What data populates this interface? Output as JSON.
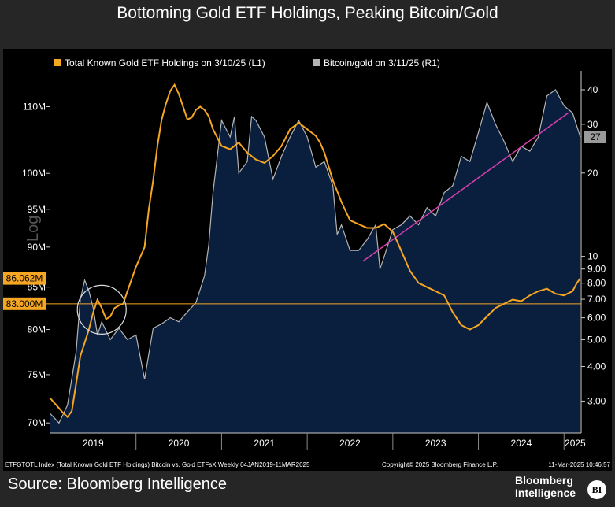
{
  "title": "Bottoming Gold ETF Holdings, Peaking Bitcoin/Gold",
  "source": "Source: Bloomberg Intelligence",
  "brand": {
    "line1": "Bloomberg",
    "line2": "Intelligence",
    "badge": "BI"
  },
  "footnote_left": "ETFGTOTL Index (Total Known Gold ETF Holdings) Bitcoin vs. Gold ETFsX  Weekly 04JAN2019-11MAR2025",
  "footnote_mid": "Copyright© 2025 Bloomberg Finance L.P.",
  "footnote_right": "11-Mar-2025 10:46:57",
  "log_label": "Log",
  "colors": {
    "gold": "#f5a623",
    "bitcoin_gold": "#b4b4b4",
    "area": "#0a1f3d",
    "trend": "#d93fb0",
    "bg": "#000000"
  },
  "chart_data": {
    "type": "line",
    "x_labels": [
      "2019",
      "2020",
      "2021",
      "2022",
      "2023",
      "2024",
      "2025"
    ],
    "left_axis": {
      "scale": "log",
      "ticks": [
        "110M",
        "100M",
        "95M",
        "90M",
        "85M",
        "80M",
        "75M",
        "70M"
      ],
      "tick_values": [
        110,
        100,
        95,
        90,
        85,
        80,
        75,
        70
      ],
      "range": [
        69,
        115
      ]
    },
    "right_axis": {
      "scale": "log",
      "ticks": [
        "40",
        "30",
        "20",
        "10",
        "9.00",
        "8.00",
        "7.00",
        "6.00",
        "5.00",
        "4.00",
        "3.00"
      ],
      "tick_values": [
        40,
        30,
        20,
        10,
        9,
        8,
        7,
        6,
        5,
        4,
        3
      ],
      "range": [
        2.3,
        45
      ]
    },
    "legend": [
      {
        "name": "Total Known Gold ETF Holdings on 3/10/25 (L1)",
        "color": "#f5a623"
      },
      {
        "name": "Bitcoin/gold on 3/11/25 (R1)",
        "color": "#b4b4b4"
      }
    ],
    "annotations": {
      "last_gold": {
        "label": "86.062M",
        "value": 86.062
      },
      "hline": {
        "label": "83.000M",
        "value": 83.0
      },
      "last_btc": {
        "label": "27",
        "value": 27
      }
    },
    "series": [
      {
        "name": "Total Known Gold ETF Holdings on 3/10/25 (L1)",
        "axis": "left",
        "x": [
          2019.0,
          2019.05,
          2019.1,
          2019.15,
          2019.2,
          2019.25,
          2019.3,
          2019.35,
          2019.4,
          2019.45,
          2019.5,
          2019.55,
          2019.6,
          2019.65,
          2019.7,
          2019.75,
          2019.8,
          2019.85,
          2019.9,
          2020.0,
          2020.1,
          2020.15,
          2020.2,
          2020.25,
          2020.3,
          2020.35,
          2020.4,
          2020.45,
          2020.5,
          2020.55,
          2020.6,
          2020.65,
          2020.7,
          2020.75,
          2020.8,
          2020.85,
          2020.9,
          2021.0,
          2021.1,
          2021.2,
          2021.3,
          2021.4,
          2021.5,
          2021.6,
          2021.7,
          2021.8,
          2021.9,
          2022.0,
          2022.1,
          2022.15,
          2022.2,
          2022.25,
          2022.3,
          2022.4,
          2022.5,
          2022.6,
          2022.7,
          2022.8,
          2022.9,
          2023.0,
          2023.1,
          2023.2,
          2023.3,
          2023.4,
          2023.5,
          2023.6,
          2023.7,
          2023.8,
          2023.9,
          2024.0,
          2024.1,
          2024.2,
          2024.3,
          2024.4,
          2024.5,
          2024.6,
          2024.7,
          2024.8,
          2024.9,
          2025.0,
          2025.1,
          2025.15,
          2025.19
        ],
        "values": [
          72.5,
          72.0,
          71.5,
          71.0,
          70.6,
          71.2,
          74.0,
          77.0,
          78.5,
          80.0,
          82.0,
          83.5,
          82.5,
          81.2,
          81.5,
          82.5,
          82.8,
          83.0,
          84.5,
          87.5,
          90.0,
          95.0,
          99.0,
          104.0,
          108.0,
          110.5,
          112.5,
          113.5,
          112.0,
          110.0,
          108.0,
          108.3,
          109.5,
          110.0,
          109.5,
          108.5,
          106.5,
          104.0,
          103.5,
          104.5,
          103.0,
          102.0,
          101.5,
          102.5,
          104.0,
          106.5,
          107.5,
          106.5,
          105.5,
          104.5,
          103.0,
          101.0,
          99.0,
          96.0,
          93.5,
          93.0,
          92.5,
          92.5,
          93.0,
          92.0,
          89.5,
          87.0,
          85.5,
          85.0,
          84.5,
          84.0,
          82.0,
          80.5,
          80.0,
          80.5,
          81.5,
          82.5,
          83.0,
          83.5,
          83.3,
          84.0,
          84.5,
          84.8,
          84.2,
          84.0,
          84.5,
          85.5,
          86.062
        ]
      },
      {
        "name": "Bitcoin/gold on 3/11/25 (R1)",
        "axis": "right",
        "x": [
          2019.0,
          2019.05,
          2019.1,
          2019.2,
          2019.3,
          2019.35,
          2019.4,
          2019.45,
          2019.5,
          2019.55,
          2019.6,
          2019.7,
          2019.8,
          2019.9,
          2020.0,
          2020.1,
          2020.2,
          2020.3,
          2020.4,
          2020.5,
          2020.6,
          2020.7,
          2020.8,
          2020.85,
          2020.9,
          2021.0,
          2021.1,
          2021.15,
          2021.2,
          2021.3,
          2021.35,
          2021.4,
          2021.5,
          2021.6,
          2021.7,
          2021.8,
          2021.9,
          2022.0,
          2022.1,
          2022.2,
          2022.3,
          2022.35,
          2022.4,
          2022.5,
          2022.6,
          2022.7,
          2022.8,
          2022.85,
          2022.9,
          2023.0,
          2023.1,
          2023.2,
          2023.3,
          2023.4,
          2023.5,
          2023.6,
          2023.7,
          2023.8,
          2023.9,
          2024.0,
          2024.1,
          2024.2,
          2024.3,
          2024.4,
          2024.5,
          2024.6,
          2024.7,
          2024.8,
          2024.9,
          2025.0,
          2025.1,
          2025.19
        ],
        "values": [
          2.7,
          2.6,
          2.5,
          2.9,
          4.5,
          7.0,
          8.2,
          7.5,
          6.5,
          5.2,
          5.8,
          5.0,
          5.5,
          5.0,
          5.2,
          3.6,
          5.5,
          5.7,
          6.0,
          5.8,
          6.3,
          6.8,
          8.5,
          11.0,
          17.0,
          31.0,
          27.0,
          32.0,
          20.0,
          22.0,
          32.0,
          31.0,
          27.0,
          19.0,
          23.0,
          27.0,
          31.0,
          27.0,
          21.0,
          22.0,
          18.0,
          12.0,
          13.0,
          10.5,
          10.5,
          11.5,
          13.0,
          9.0,
          10.0,
          12.5,
          13.0,
          14.0,
          13.0,
          15.0,
          14.0,
          17.0,
          18.0,
          23.0,
          22.0,
          28.0,
          36.0,
          30.0,
          26.0,
          22.0,
          25.0,
          24.0,
          27.0,
          38.0,
          40.0,
          35.0,
          33.0,
          27.0
        ]
      }
    ],
    "trendline": {
      "axis": "right",
      "x": [
        2022.65,
        2025.05
      ],
      "values": [
        9.6,
        33.0
      ]
    }
  }
}
